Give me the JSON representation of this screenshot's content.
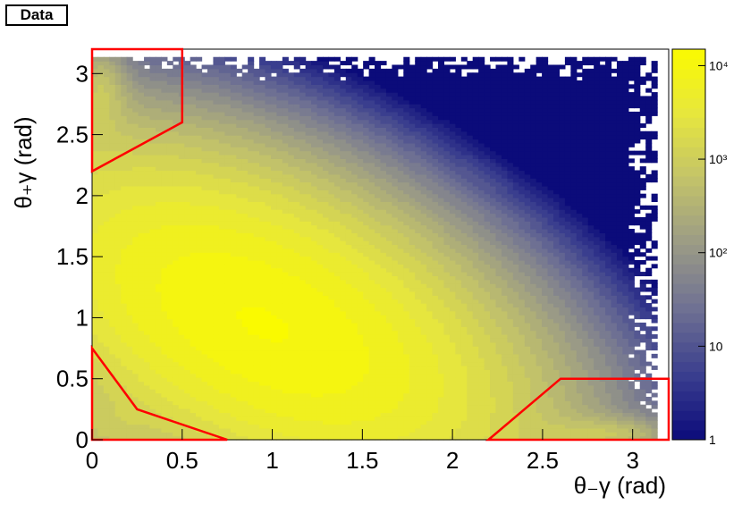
{
  "label_box": "Data",
  "chart_data": {
    "type": "heatmap",
    "title": "",
    "xlabel": "θ₋γ (rad)",
    "ylabel": "θ₊γ (rad)",
    "xlim": [
      0,
      3.2
    ],
    "ylim": [
      0,
      3.2
    ],
    "bins": 100,
    "x_ticks": [
      0,
      0.5,
      1,
      1.5,
      2,
      2.5,
      3
    ],
    "y_ticks": [
      0,
      0.5,
      1,
      1.5,
      2,
      2.5,
      3
    ],
    "z_scale": "log",
    "z_range": [
      1,
      15000
    ],
    "colorbar_ticks": [
      {
        "value": 1,
        "label": "1"
      },
      {
        "value": 10,
        "label": "10"
      },
      {
        "value": 100,
        "label": "10²"
      },
      {
        "value": 1000,
        "label": "10³"
      },
      {
        "value": 10000,
        "label": "10⁴"
      }
    ],
    "palette": [
      "#0b0b7a",
      "#3a3e8e",
      "#6e7093",
      "#9a9a86",
      "#c2c26a",
      "#e6e63e",
      "#fafa00"
    ],
    "peak_region": {
      "x": 0.95,
      "y": 0.95,
      "value": 12000
    },
    "data_extent": {
      "x_max": 3.12,
      "y_max": 3.12
    },
    "cut_regions": [
      {
        "name": "top-left",
        "points": [
          [
            0,
            2.2
          ],
          [
            0.5,
            2.6
          ],
          [
            0.5,
            3.2
          ],
          [
            0,
            3.2
          ]
        ]
      },
      {
        "name": "bottom-left",
        "points": [
          [
            0,
            0.75
          ],
          [
            0.25,
            0.25
          ],
          [
            0.75,
            0
          ],
          [
            0,
            0
          ]
        ]
      },
      {
        "name": "bottom-right",
        "points": [
          [
            2.2,
            0
          ],
          [
            2.6,
            0.5
          ],
          [
            3.2,
            0.5
          ],
          [
            3.2,
            0
          ]
        ]
      }
    ],
    "region_color": "#ff0000",
    "grid": false
  }
}
